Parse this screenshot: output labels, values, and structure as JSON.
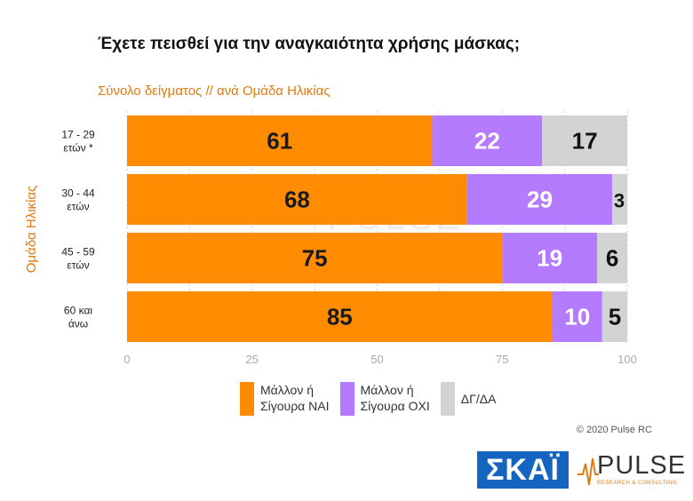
{
  "title": "Έχετε πεισθεί για την αναγκαιότητα χρήσης μάσκας;",
  "subtitle": "Σύνολο δείγματος // ανά Ομάδα Ηλικίας",
  "colors": {
    "yes": "#ff8c00",
    "no": "#b57bff",
    "dk": "#d3d3d3",
    "accent": "#e07a10"
  },
  "chart_data": {
    "type": "bar",
    "orientation": "horizontal",
    "stacked": true,
    "ylabel": "Ομάδα Ηλικίας",
    "categories": [
      [
        "17 - 29",
        "ετών *"
      ],
      [
        "30 - 44",
        "ετών"
      ],
      [
        "45 - 59",
        "ετών"
      ],
      [
        "60 και",
        "άνω"
      ]
    ],
    "series": [
      {
        "name": "Μάλλον ή Σίγουρα ΝΑΙ",
        "values": [
          61,
          68,
          75,
          85
        ]
      },
      {
        "name": "Μάλλον ή Σίγουρα ΟΧΙ",
        "values": [
          22,
          29,
          19,
          10
        ]
      },
      {
        "name": "ΔΓ/ΔΑ",
        "values": [
          17,
          3,
          6,
          5
        ]
      }
    ],
    "xlim": [
      0,
      100
    ],
    "xticks": [
      0,
      25,
      50,
      75,
      100
    ],
    "grid": true,
    "legend_position": "bottom"
  },
  "legend": [
    {
      "line1": "Μάλλον ή",
      "line2": "Σίγουρα ΝΑΙ"
    },
    {
      "line1": "Μάλλον ή",
      "line2": "Σίγουρα ΟΧΙ"
    },
    {
      "line1": "ΔΓ/ΔΑ"
    }
  ],
  "watermark": {
    "main": "PULSE",
    "sub": "RESEARCH & CONSULTING"
  },
  "copyright": "© 2020 Pulse RC",
  "logos": {
    "skai": "ΣΚΑΪ",
    "pulse_main": "PULSE",
    "pulse_sub": "RESEARCH & CONSULTING"
  }
}
